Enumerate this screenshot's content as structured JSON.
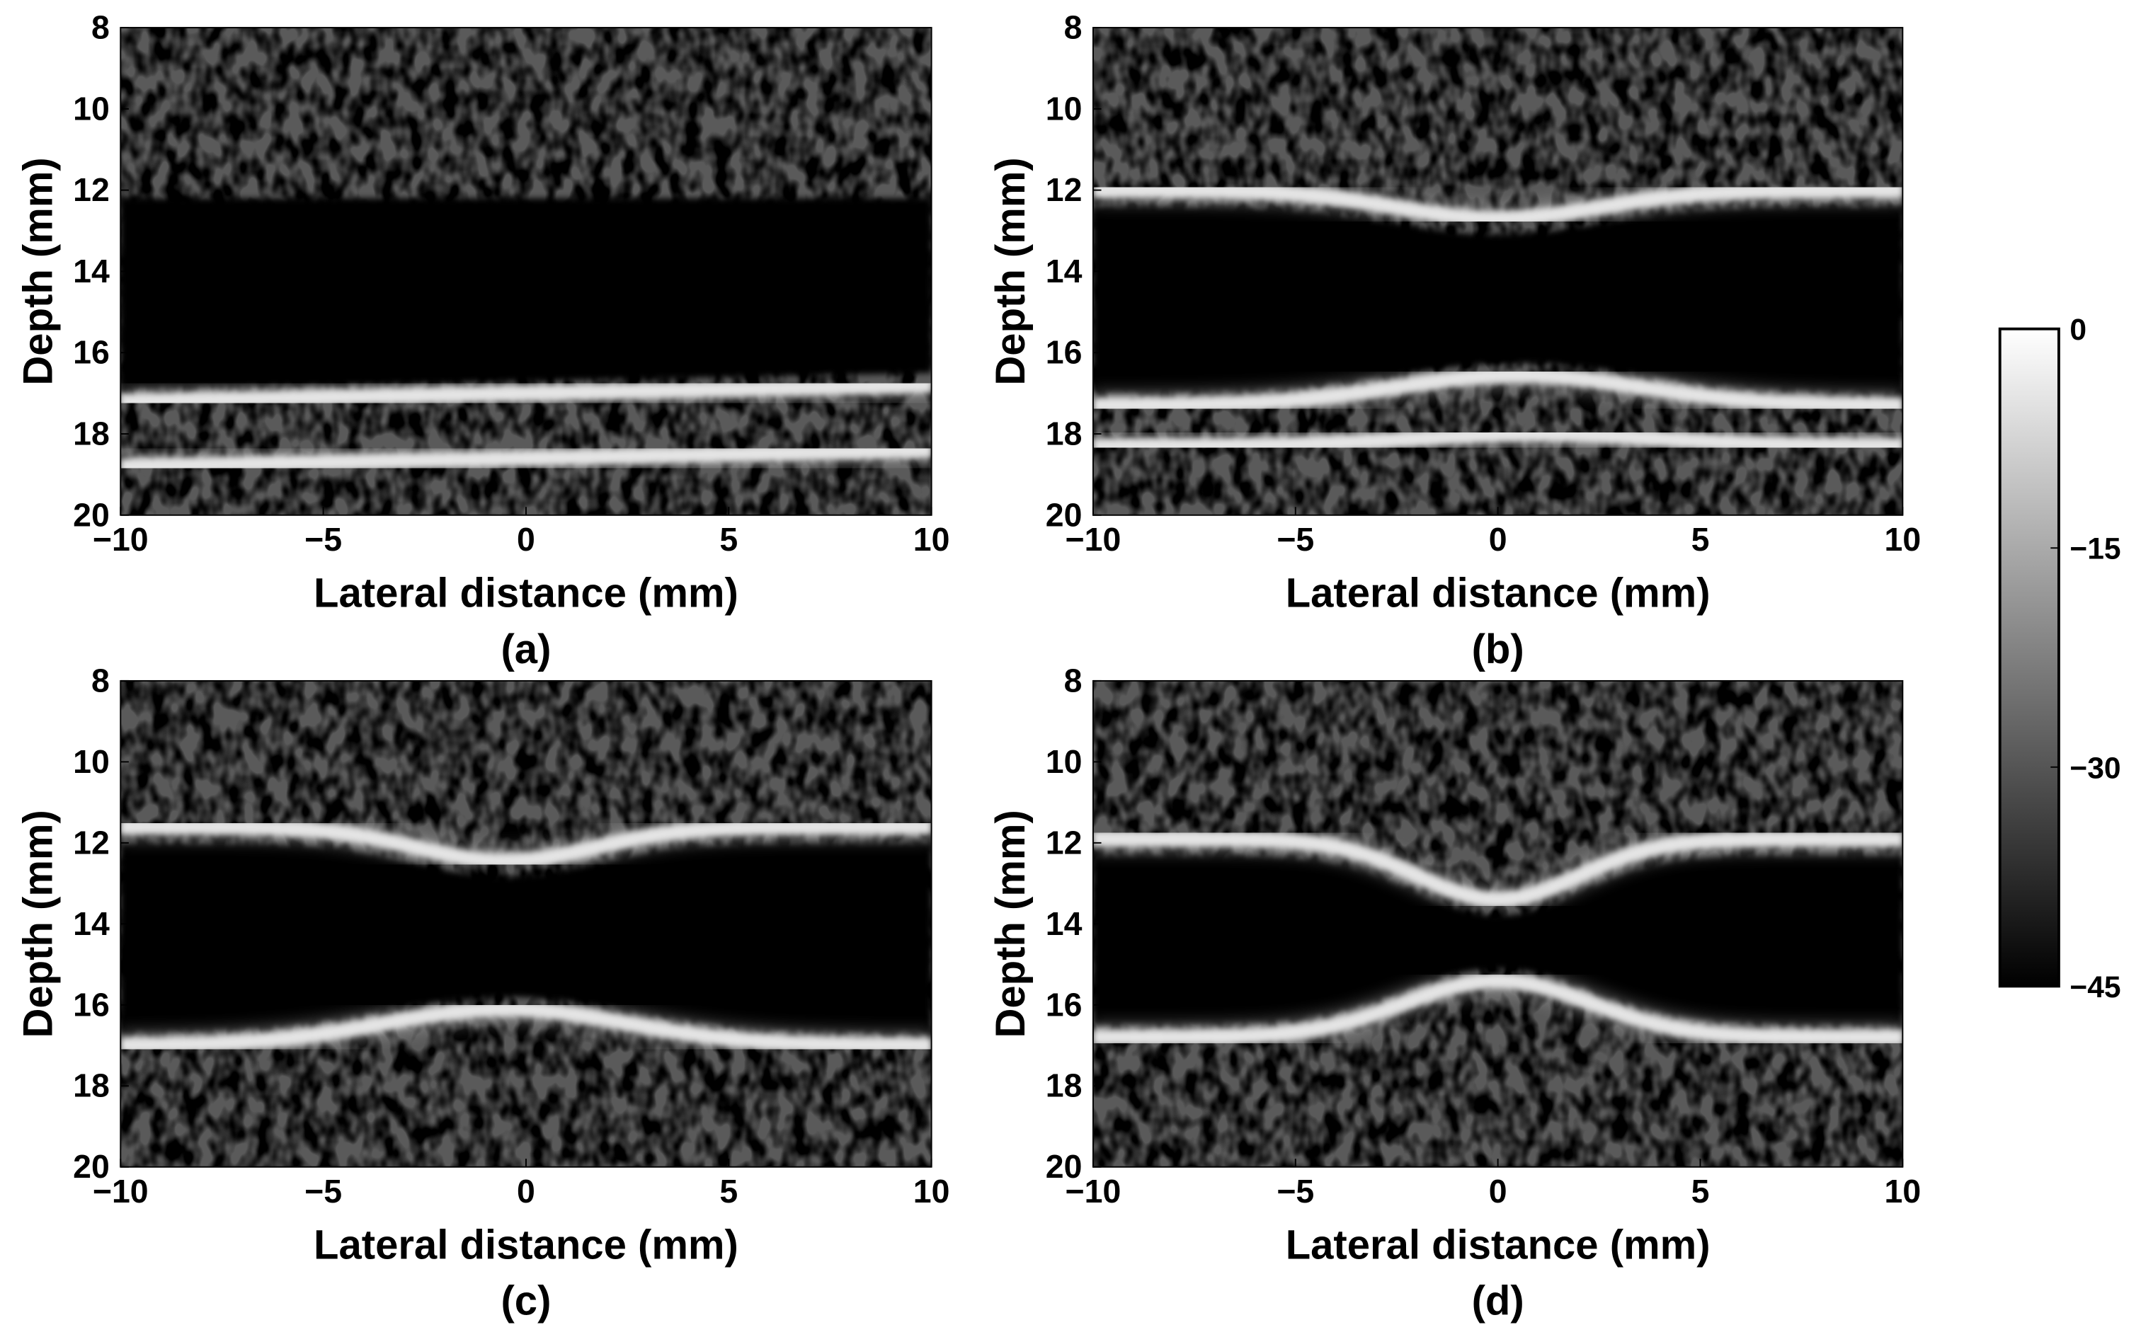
{
  "chart_data": [
    {
      "type": "image",
      "xlabel": "Lateral distance (mm)",
      "ylabel": "Depth (mm)",
      "caption": "(a)",
      "xlim": [
        -10,
        10
      ],
      "ylim": [
        8,
        20
      ],
      "yreverse": true,
      "xticks": [
        {
          "value": -10,
          "label": "−10"
        },
        {
          "value": -5,
          "label": "−5"
        },
        0,
        5,
        10
      ],
      "yticks": [
        8,
        10,
        12,
        14,
        16,
        18,
        20
      ]
    },
    {
      "type": "image",
      "xlabel": "Lateral distance (mm)",
      "ylabel": "Depth (mm)",
      "caption": "(b)",
      "xlim": [
        -10,
        10
      ],
      "ylim": [
        8,
        20
      ],
      "yreverse": true,
      "xticks": [
        {
          "value": -10,
          "label": "−10"
        },
        {
          "value": -5,
          "label": "−5"
        },
        0,
        5,
        10
      ],
      "yticks": [
        8,
        10,
        12,
        14,
        16,
        18,
        20
      ]
    },
    {
      "type": "image",
      "xlabel": "Lateral distance (mm)",
      "ylabel": "Depth (mm)",
      "caption": "(c)",
      "xlim": [
        -10,
        10
      ],
      "ylim": [
        8,
        20
      ],
      "yreverse": true,
      "xticks": [
        {
          "value": -10,
          "label": "−10"
        },
        {
          "value": -5,
          "label": "−5"
        },
        0,
        5,
        10
      ],
      "yticks": [
        8,
        10,
        12,
        14,
        16,
        18,
        20
      ]
    },
    {
      "type": "image",
      "xlabel": "Lateral distance (mm)",
      "ylabel": "Depth (mm)",
      "caption": "(d)",
      "xlim": [
        -10,
        10
      ],
      "ylim": [
        8,
        20
      ],
      "yreverse": true,
      "xticks": [
        {
          "value": -10,
          "label": "−10"
        },
        {
          "value": -5,
          "label": "−5"
        },
        0,
        5,
        10
      ],
      "yticks": [
        8,
        10,
        12,
        14,
        16,
        18,
        20
      ]
    },
    {
      "type": "colorbar",
      "ylim": [
        -45,
        0
      ],
      "colors": [
        "#000000",
        "#ffffff"
      ],
      "yticks": [
        0,
        {
          "value": -15,
          "label": "−15"
        },
        {
          "value": -30,
          "label": "−30"
        },
        {
          "value": -45,
          "label": "−45"
        }
      ]
    }
  ]
}
